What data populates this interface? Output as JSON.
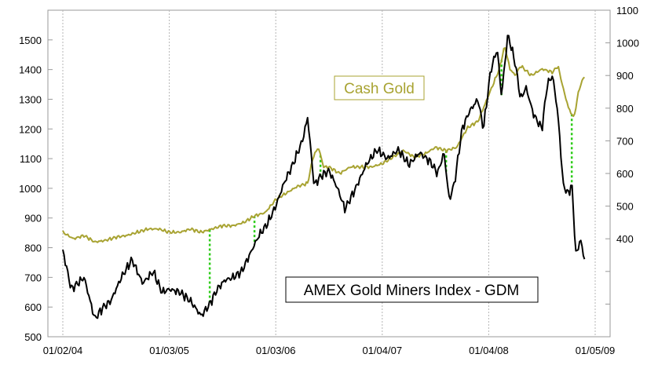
{
  "chart_data": {
    "type": "line",
    "title": "",
    "grid": {
      "vertical": true,
      "horizontal": false,
      "style": "dotted"
    },
    "x_axis": {
      "tick_labels": [
        "01/02/04",
        "01/03/05",
        "01/03/06",
        "01/04/07",
        "01/04/08",
        "01/05/09"
      ]
    },
    "y_left": {
      "range": [
        500,
        1600
      ],
      "tick_labels": [
        "500",
        "600",
        "700",
        "800",
        "900",
        "1000",
        "1100",
        "1200",
        "1300",
        "1400",
        "1500"
      ]
    },
    "y_right": {
      "range": [
        100,
        1100
      ],
      "tick_labels": [
        "400",
        "500",
        "600",
        "700",
        "800",
        "900",
        "1000",
        "1100"
      ]
    },
    "series": [
      {
        "name": "AMEX Gold Miners Index - GDM",
        "axis": "left",
        "color": "#000000",
        "x": [
          2004.0,
          2004.08,
          2004.2,
          2004.3,
          2004.38,
          2004.45,
          2004.55,
          2004.65,
          2004.75,
          2004.85,
          2004.93,
          2005.0,
          2005.1,
          2005.2,
          2005.3,
          2005.38,
          2005.45,
          2005.52,
          2005.6,
          2005.68,
          2005.76,
          2005.84,
          2005.92,
          2006.0,
          2006.08,
          2006.16,
          2006.25,
          2006.3,
          2006.36,
          2006.42,
          2006.5,
          2006.58,
          2006.65,
          2006.75,
          2006.85,
          2006.95,
          2007.05,
          2007.15,
          2007.25,
          2007.35,
          2007.45,
          2007.52,
          2007.58,
          2007.63,
          2007.68,
          2007.75,
          2007.82,
          2007.9,
          2007.95,
          2008.02,
          2008.08,
          2008.12,
          2008.18,
          2008.25,
          2008.3,
          2008.35,
          2008.42,
          2008.5,
          2008.55,
          2008.6,
          2008.65,
          2008.7,
          2008.75,
          2008.78,
          2008.82,
          2008.86,
          2008.9
        ],
        "values": [
          790,
          660,
          700,
          560,
          600,
          620,
          700,
          760,
          680,
          720,
          650,
          660,
          650,
          620,
          570,
          610,
          660,
          690,
          700,
          720,
          780,
          840,
          880,
          940,
          1020,
          1080,
          1160,
          1240,
          1010,
          1040,
          1060,
          1000,
          930,
          1000,
          1080,
          1130,
          1100,
          1130,
          1080,
          1120,
          1090,
          1050,
          1120,
          960,
          1020,
          1200,
          1260,
          1300,
          1200,
          1400,
          1470,
          1310,
          1520,
          1420,
          1300,
          1340,
          1250,
          1200,
          1350,
          1380,
          1250,
          1010,
          980,
          1020,
          770,
          830,
          760
        ]
      },
      {
        "name": "Cash Gold",
        "axis": "right",
        "color": "#a8a332",
        "x": [
          2004.0,
          2004.1,
          2004.2,
          2004.3,
          2004.4,
          2004.5,
          2004.6,
          2004.7,
          2004.8,
          2004.9,
          2005.0,
          2005.1,
          2005.2,
          2005.3,
          2005.4,
          2005.5,
          2005.6,
          2005.7,
          2005.8,
          2005.9,
          2006.0,
          2006.1,
          2006.2,
          2006.3,
          2006.35,
          2006.4,
          2006.45,
          2006.5,
          2006.6,
          2006.7,
          2006.8,
          2006.9,
          2007.0,
          2007.1,
          2007.2,
          2007.3,
          2007.4,
          2007.5,
          2007.6,
          2007.7,
          2007.8,
          2007.9,
          2008.0,
          2008.05,
          2008.1,
          2008.15,
          2008.2,
          2008.25,
          2008.3,
          2008.4,
          2008.5,
          2008.6,
          2008.65,
          2008.7,
          2008.75,
          2008.8,
          2008.85,
          2008.9
        ],
        "values": [
          420,
          400,
          410,
          390,
          395,
          405,
          410,
          420,
          430,
          430,
          420,
          420,
          430,
          420,
          430,
          440,
          440,
          450,
          470,
          480,
          520,
          540,
          560,
          570,
          650,
          680,
          620,
          620,
          600,
          620,
          620,
          620,
          630,
          650,
          670,
          650,
          660,
          680,
          670,
          680,
          740,
          760,
          840,
          880,
          920,
          990,
          920,
          900,
          930,
          900,
          920,
          910,
          930,
          860,
          800,
          770,
          860,
          900
        ]
      }
    ],
    "annotations": [
      {
        "text": "Cash Gold",
        "color": "#a8a332",
        "boxed": true,
        "border": "#a8a332"
      },
      {
        "text": "AMEX Gold Miners Index - GDM",
        "color": "#000000",
        "boxed": true,
        "border": "#000000"
      },
      {
        "type": "vertical-markers",
        "style": "dotted",
        "color": "#2ecc1a",
        "x": [
          2005.38,
          2005.8,
          2006.42,
          2007.6,
          2008.12,
          2008.78
        ]
      }
    ],
    "legend": "none"
  }
}
